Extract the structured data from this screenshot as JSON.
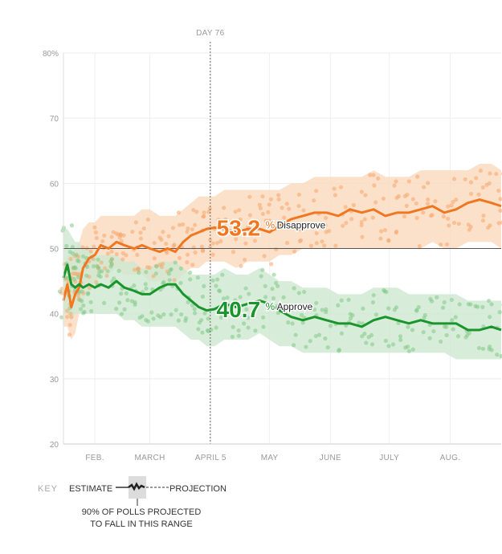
{
  "chart_data": {
    "type": "line",
    "title": "",
    "xlabel": "",
    "ylabel": "",
    "y_unit": "%",
    "ylim": [
      20,
      80
    ],
    "y_ticks": [
      20,
      30,
      40,
      50,
      60,
      70,
      80
    ],
    "y_tick_labels": [
      "20",
      "30",
      "40",
      "50",
      "60",
      "70",
      "80%"
    ],
    "x_axis": {
      "start_date": "2017-01-20",
      "end_date": "2017-08-31",
      "ticks": [
        {
          "date": "2017-02-05",
          "label": "FEB."
        },
        {
          "date": "2017-03-05",
          "label": "MARCH"
        },
        {
          "date": "2017-04-05",
          "label": "APRIL 5"
        },
        {
          "date": "2017-05-05",
          "label": "MAY"
        },
        {
          "date": "2017-06-05",
          "label": "JUNE"
        },
        {
          "date": "2017-07-05",
          "label": "JULY"
        },
        {
          "date": "2017-08-05",
          "label": "AUG."
        }
      ]
    },
    "marker": {
      "date": "2017-04-05",
      "label": "DAY 76"
    },
    "reference_line": 50,
    "grid": true,
    "series": [
      {
        "name": "Disapprove",
        "color": "#f07620",
        "band_color": "#fbd9bd",
        "dot_color": "#f5a56b",
        "latest_label": "53.2",
        "label_date": "2017-04-08",
        "dates": [
          "2017-01-20",
          "2017-01-22",
          "2017-01-24",
          "2017-01-26",
          "2017-01-28",
          "2017-01-30",
          "2017-02-02",
          "2017-02-05",
          "2017-02-08",
          "2017-02-12",
          "2017-02-16",
          "2017-02-20",
          "2017-02-25",
          "2017-03-01",
          "2017-03-05",
          "2017-03-10",
          "2017-03-14",
          "2017-03-18",
          "2017-03-22",
          "2017-03-26",
          "2017-03-30",
          "2017-04-03",
          "2017-04-07",
          "2017-04-12",
          "2017-04-18",
          "2017-04-24",
          "2017-04-30",
          "2017-05-05",
          "2017-05-10",
          "2017-05-16",
          "2017-05-22",
          "2017-05-28",
          "2017-06-03",
          "2017-06-09",
          "2017-06-15",
          "2017-06-21",
          "2017-06-27",
          "2017-07-03",
          "2017-07-09",
          "2017-07-15",
          "2017-07-21",
          "2017-07-27",
          "2017-08-02",
          "2017-08-08",
          "2017-08-14",
          "2017-08-20",
          "2017-08-26",
          "2017-08-31"
        ],
        "values": [
          42.0,
          44.5,
          41.0,
          43.0,
          44.0,
          47.0,
          48.5,
          49.0,
          50.5,
          50.0,
          51.0,
          50.5,
          50.0,
          50.5,
          50.0,
          49.5,
          50.0,
          49.5,
          51.0,
          52.0,
          52.5,
          53.0,
          53.2,
          53.0,
          52.5,
          53.0,
          53.0,
          52.5,
          53.5,
          54.5,
          55.0,
          55.5,
          55.5,
          55.0,
          56.0,
          55.5,
          56.0,
          55.0,
          55.5,
          55.5,
          56.0,
          56.5,
          55.5,
          56.0,
          57.0,
          57.5,
          57.0,
          56.5
        ],
        "band": [
          [
            38,
            46
          ],
          [
            38,
            49
          ],
          [
            36,
            49
          ],
          [
            37,
            50
          ],
          [
            40,
            51
          ],
          [
            42,
            53
          ],
          [
            44,
            54
          ],
          [
            45,
            54
          ],
          [
            46,
            55
          ],
          [
            46,
            55
          ],
          [
            47,
            55
          ],
          [
            46,
            55
          ],
          [
            46,
            55
          ],
          [
            46,
            56
          ],
          [
            45,
            56
          ],
          [
            45,
            55
          ],
          [
            45,
            55
          ],
          [
            45,
            55
          ],
          [
            46,
            56
          ],
          [
            47,
            57
          ],
          [
            47,
            58
          ],
          [
            48,
            58
          ],
          [
            48,
            58
          ],
          [
            48,
            59
          ],
          [
            47,
            59
          ],
          [
            48,
            59
          ],
          [
            48,
            59
          ],
          [
            48,
            59
          ],
          [
            49,
            59
          ],
          [
            49,
            60
          ],
          [
            50,
            60
          ],
          [
            50,
            61
          ],
          [
            50,
            61
          ],
          [
            50,
            61
          ],
          [
            50,
            61
          ],
          [
            50,
            61
          ],
          [
            50,
            62
          ],
          [
            50,
            61
          ],
          [
            50,
            61
          ],
          [
            50,
            61
          ],
          [
            50,
            62
          ],
          [
            51,
            62
          ],
          [
            50,
            62
          ],
          [
            50,
            62
          ],
          [
            51,
            62
          ],
          [
            51,
            63
          ],
          [
            51,
            63
          ],
          [
            50,
            62
          ]
        ]
      },
      {
        "name": "Approve",
        "color": "#19952b",
        "band_color": "#cde9cf",
        "dot_color": "#7fc987",
        "latest_label": "40.7",
        "label_date": "2017-04-08",
        "dates": [
          "2017-01-20",
          "2017-01-22",
          "2017-01-24",
          "2017-01-26",
          "2017-01-28",
          "2017-01-30",
          "2017-02-02",
          "2017-02-05",
          "2017-02-08",
          "2017-02-12",
          "2017-02-16",
          "2017-02-20",
          "2017-02-25",
          "2017-03-01",
          "2017-03-05",
          "2017-03-10",
          "2017-03-14",
          "2017-03-18",
          "2017-03-22",
          "2017-03-26",
          "2017-03-30",
          "2017-04-03",
          "2017-04-07",
          "2017-04-12",
          "2017-04-18",
          "2017-04-24",
          "2017-04-30",
          "2017-05-05",
          "2017-05-10",
          "2017-05-16",
          "2017-05-22",
          "2017-05-28",
          "2017-06-03",
          "2017-06-09",
          "2017-06-15",
          "2017-06-21",
          "2017-06-27",
          "2017-07-03",
          "2017-07-09",
          "2017-07-15",
          "2017-07-21",
          "2017-07-27",
          "2017-08-02",
          "2017-08-08",
          "2017-08-14",
          "2017-08-20",
          "2017-08-26",
          "2017-08-31"
        ],
        "values": [
          45.5,
          47.5,
          44.5,
          44.0,
          44.5,
          44.0,
          44.5,
          44.0,
          44.5,
          44.0,
          45.0,
          44.0,
          43.5,
          43.0,
          43.0,
          44.0,
          44.5,
          44.5,
          43.0,
          42.0,
          41.0,
          40.5,
          40.7,
          41.5,
          41.0,
          41.5,
          42.0,
          41.5,
          40.5,
          39.5,
          39.0,
          39.5,
          39.0,
          38.5,
          38.5,
          38.0,
          39.0,
          39.5,
          39.0,
          38.5,
          39.0,
          38.5,
          38.5,
          38.5,
          37.5,
          37.5,
          38.0,
          37.5
        ],
        "band": [
          [
            40,
            53
          ],
          [
            40,
            53
          ],
          [
            39,
            52
          ],
          [
            40,
            51
          ],
          [
            40,
            51
          ],
          [
            40,
            50
          ],
          [
            40,
            50
          ],
          [
            40,
            49
          ],
          [
            40,
            49
          ],
          [
            40,
            49
          ],
          [
            40,
            49
          ],
          [
            39,
            48
          ],
          [
            39,
            48
          ],
          [
            38,
            47
          ],
          [
            38,
            47
          ],
          [
            38,
            48
          ],
          [
            38,
            48
          ],
          [
            38,
            48
          ],
          [
            37,
            47
          ],
          [
            36,
            46
          ],
          [
            36,
            46
          ],
          [
            35,
            46
          ],
          [
            35,
            46
          ],
          [
            36,
            47
          ],
          [
            36,
            46
          ],
          [
            36,
            46
          ],
          [
            37,
            47
          ],
          [
            36,
            46
          ],
          [
            35,
            45
          ],
          [
            35,
            45
          ],
          [
            34,
            44
          ],
          [
            34,
            44
          ],
          [
            34,
            44
          ],
          [
            34,
            43
          ],
          [
            34,
            43
          ],
          [
            34,
            43
          ],
          [
            34,
            44
          ],
          [
            34,
            44
          ],
          [
            34,
            44
          ],
          [
            34,
            43
          ],
          [
            34,
            43
          ],
          [
            34,
            43
          ],
          [
            34,
            43
          ],
          [
            33,
            43
          ],
          [
            33,
            42
          ],
          [
            33,
            42
          ],
          [
            33,
            42
          ],
          [
            33,
            42
          ]
        ]
      }
    ]
  },
  "key": {
    "key_label": "KEY",
    "estimate_label": "ESTIMATE",
    "projection_label": "PROJECTION",
    "range_note_line1": "90% OF POLLS PROJECTED",
    "range_note_line2": "TO FALL IN THIS RANGE"
  }
}
